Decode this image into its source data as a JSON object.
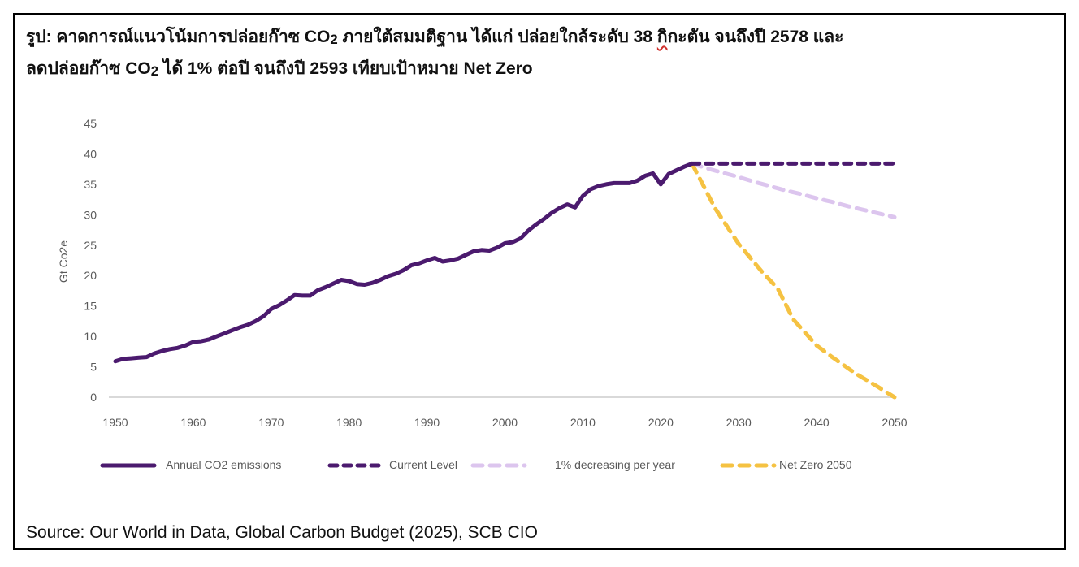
{
  "title": {
    "line1_a": "รูป: คาดการณ์แนวโน้มการปล่อยก๊าซ CO",
    "line1_sub": "2",
    "line1_b": "  ภายใต้สมมติฐาน ได้แก่ ปล่อยใกล้ระดับ 38 ",
    "line1_spell": "กิ",
    "line1_c": "กะตัน จนถึงปี 2578 และ",
    "line2_a": "ลดปล่อยก๊าซ CO",
    "line2_sub": "2",
    "line2_b": " ได้ 1% ต่อปี จนถึงปี 2593 เทียบเป้าหมาย Net Zero"
  },
  "source": "Source: Our World in Data, Global Carbon Budget (2025), SCB CIO",
  "colors": {
    "annual": "#4b1a6e",
    "current": "#4b1a6e",
    "decreasing": "#dcc5ee",
    "netzero": "#f5c242",
    "axis": "#d9d9d9",
    "frame": "#000000"
  },
  "chart_data": {
    "type": "line",
    "title": "คาดการณ์แนวโน้มการปล่อยก๊าซ CO2",
    "xlabel": "",
    "ylabel": "Gt Co2e",
    "xlim": [
      1950,
      2050
    ],
    "ylim": [
      0,
      45
    ],
    "x_ticks": [
      "1950",
      "1960",
      "1970",
      "1980",
      "1990",
      "2000",
      "2010",
      "2020",
      "2030",
      "2040",
      "2050"
    ],
    "y_ticks": [
      "0",
      "5",
      "10",
      "15",
      "20",
      "25",
      "30",
      "35",
      "40",
      "45"
    ],
    "grid": false,
    "legend_position": "bottom",
    "series": [
      {
        "name": "Annual CO2 emissions",
        "style": "solid",
        "x": [
          1950,
          1951,
          1952,
          1953,
          1954,
          1955,
          1956,
          1957,
          1958,
          1959,
          1960,
          1961,
          1962,
          1963,
          1964,
          1965,
          1966,
          1967,
          1968,
          1969,
          1970,
          1971,
          1972,
          1973,
          1974,
          1975,
          1976,
          1977,
          1978,
          1979,
          1980,
          1981,
          1982,
          1983,
          1984,
          1985,
          1986,
          1987,
          1988,
          1989,
          1990,
          1991,
          1992,
          1993,
          1994,
          1995,
          1996,
          1997,
          1998,
          1999,
          2000,
          2001,
          2002,
          2003,
          2004,
          2005,
          2006,
          2007,
          2008,
          2009,
          2010,
          2011,
          2012,
          2013,
          2014,
          2015,
          2016,
          2017,
          2018,
          2019,
          2020,
          2021,
          2022,
          2023,
          2024
        ],
        "values": [
          5.9,
          6.3,
          6.4,
          6.5,
          6.6,
          7.2,
          7.6,
          7.9,
          8.1,
          8.5,
          9.1,
          9.2,
          9.5,
          10.0,
          10.5,
          11.0,
          11.5,
          11.9,
          12.5,
          13.3,
          14.5,
          15.1,
          15.9,
          16.8,
          16.7,
          16.7,
          17.6,
          18.1,
          18.7,
          19.3,
          19.1,
          18.6,
          18.5,
          18.8,
          19.3,
          19.9,
          20.3,
          20.9,
          21.7,
          22.0,
          22.5,
          22.9,
          22.3,
          22.5,
          22.8,
          23.4,
          24.0,
          24.2,
          24.1,
          24.6,
          25.3,
          25.5,
          26.1,
          27.4,
          28.4,
          29.3,
          30.3,
          31.1,
          31.7,
          31.2,
          33.1,
          34.2,
          34.7,
          35.0,
          35.2,
          35.2,
          35.2,
          35.6,
          36.4,
          36.8,
          35.0,
          36.7,
          37.3,
          37.9,
          38.4
        ]
      },
      {
        "name": "Current Level",
        "style": "dashed",
        "x": [
          2024,
          2050
        ],
        "values": [
          38.4,
          38.4
        ]
      },
      {
        "name": "1% decreasing per year",
        "style": "dashed",
        "x": [
          2024,
          2026,
          2028,
          2030,
          2032,
          2034,
          2036,
          2038,
          2040,
          2042,
          2044,
          2046,
          2048,
          2050
        ],
        "values": [
          38.4,
          37.6,
          36.9,
          36.2,
          35.4,
          34.7,
          34.0,
          33.4,
          32.7,
          32.1,
          31.4,
          30.8,
          30.2,
          29.6
        ]
      },
      {
        "name": "Net Zero 2050",
        "style": "dashed",
        "x": [
          2024,
          2027,
          2030,
          2033,
          2035,
          2037,
          2040,
          2042,
          2045,
          2048,
          2050
        ],
        "values": [
          38.4,
          31.0,
          25.2,
          20.6,
          17.9,
          12.8,
          8.5,
          6.6,
          3.9,
          1.6,
          0
        ]
      }
    ]
  }
}
